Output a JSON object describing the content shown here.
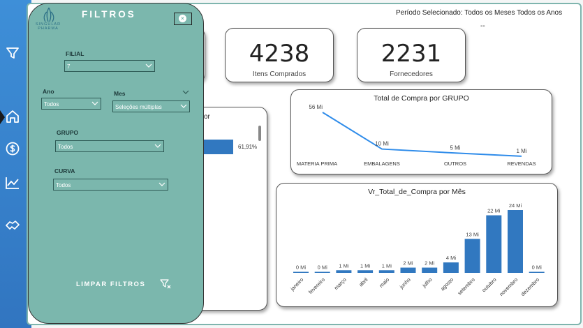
{
  "header": {
    "period_text": "Período Selecionado: Todos os Meses Todos os Anos",
    "dashdash": "--"
  },
  "sidebar": {
    "items": [
      {
        "icon": "funnel-icon"
      },
      {
        "icon": "home-icon"
      },
      {
        "icon": "dollar-icon"
      },
      {
        "icon": "line-chart-icon"
      },
      {
        "icon": "handshake-icon"
      }
    ]
  },
  "kpis": [
    {
      "value": "4238",
      "label": "Itens Comprados"
    },
    {
      "value": "2231",
      "label": "Fornecedores"
    }
  ],
  "filters": {
    "title": "FILTROS",
    "logo_text": "SINGULAR PHARMA",
    "filial_label": "FILIAL",
    "filial_value": "7",
    "ano_label": "Ano",
    "ano_value": "Todos",
    "mes_label": "Mes",
    "mes_value": "Seleções múltiplas",
    "grupo_label": "GRUPO",
    "grupo_value": "Todos",
    "curva_label": "CURVA",
    "curva_value": "Todos",
    "clear_label": "LIMPAR FILTROS"
  },
  "hidden_card": {
    "title_fragment": "or",
    "bar_pct_label": "61,91%",
    "bar_pct": 61.91
  },
  "chart_data": [
    {
      "type": "line",
      "title": "Total de Compra por GRUPO",
      "categories": [
        "MATERIA PRIMA",
        "EMBALAGENS",
        "OUTROS",
        "REVENDAS"
      ],
      "values": [
        56,
        10,
        5,
        1
      ],
      "labels": [
        "56 Mi",
        "10 Mi",
        "5 Mi",
        "1 Mi"
      ],
      "color": "#2f8cea"
    },
    {
      "type": "bar",
      "title": "Vr_Total_de_Compra por Mês",
      "categories": [
        "janeiro",
        "fevereiro",
        "março",
        "abril",
        "maio",
        "junho",
        "julho",
        "agosto",
        "setembro",
        "outubro",
        "novembro",
        "dezembro"
      ],
      "values": [
        0,
        0,
        1,
        1,
        1,
        2,
        2,
        4,
        13,
        22,
        24,
        0
      ],
      "labels": [
        "0 Mi",
        "0 Mi",
        "1 Mi",
        "1 Mi",
        "1 Mi",
        "2 Mi",
        "2 Mi",
        "4 Mi",
        "13 Mi",
        "22 Mi",
        "24 Mi",
        "0 Mi"
      ],
      "color": "#3178c0"
    }
  ]
}
